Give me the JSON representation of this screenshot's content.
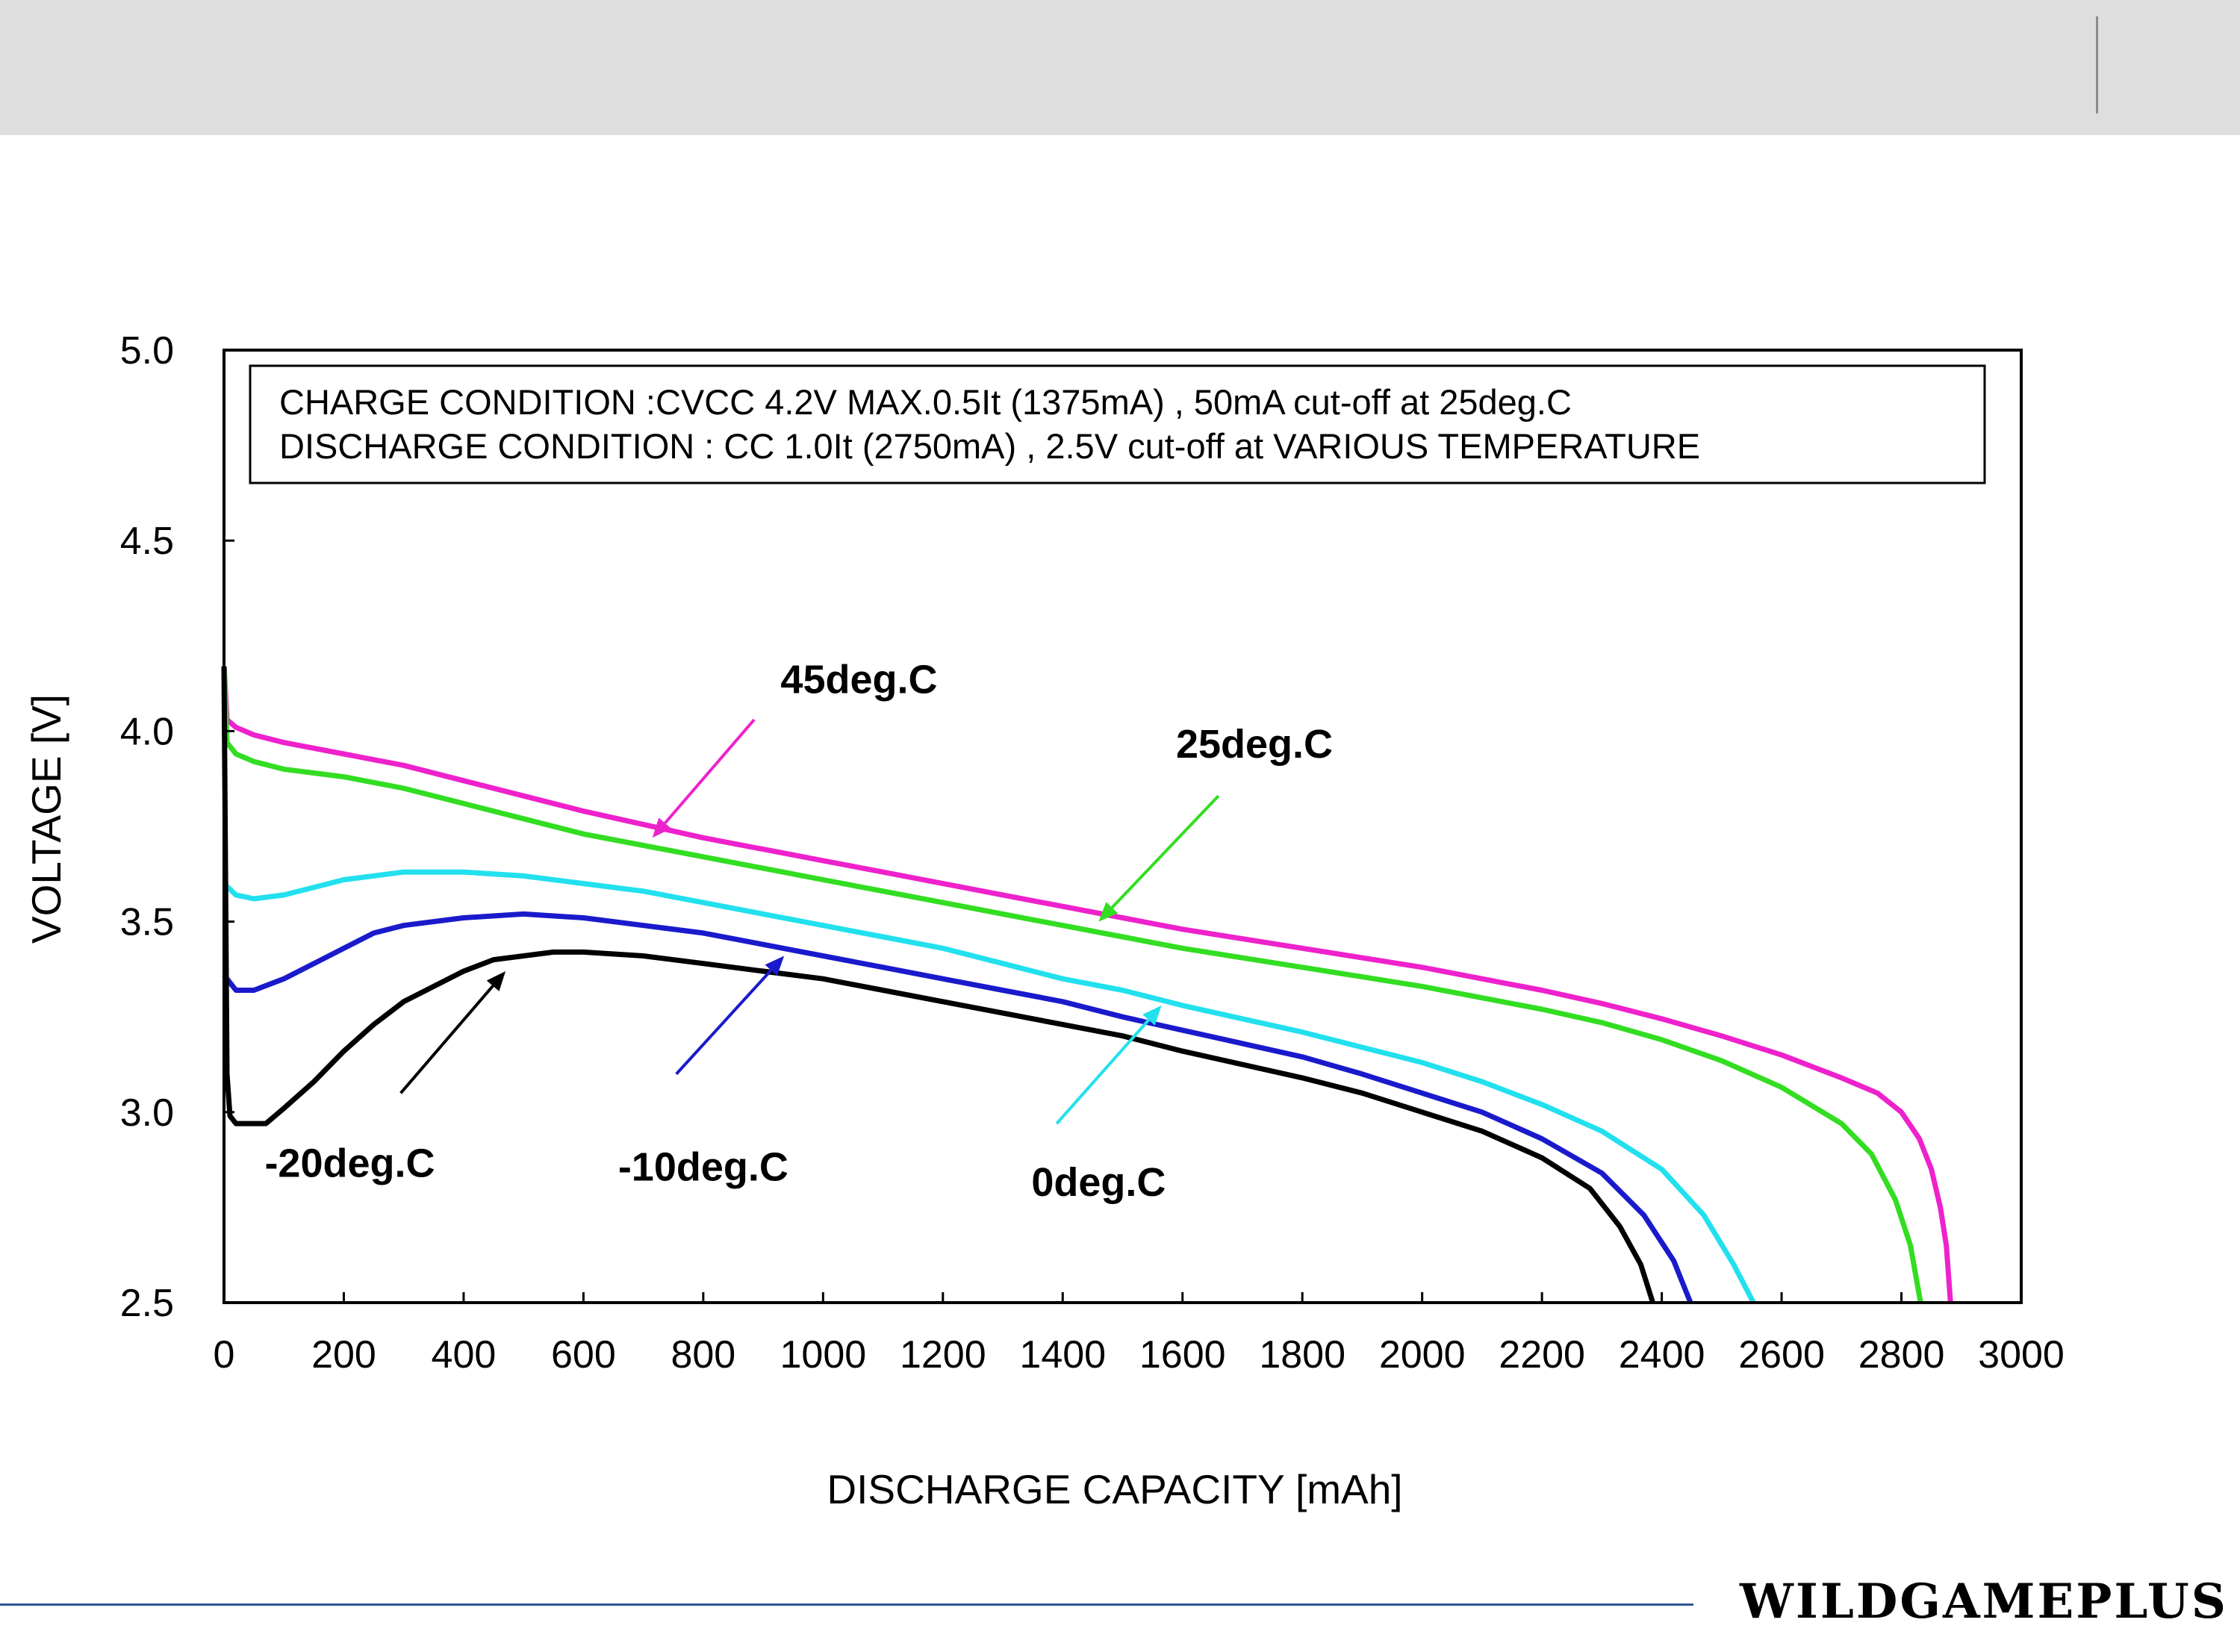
{
  "brand": "WILDGAMEPLUS",
  "chart_data": {
    "type": "line",
    "title": "",
    "xlabel": "DISCHARGE CAPACITY  [mAh]",
    "ylabel": "VOLTAGE  [V]",
    "xlim": [
      0,
      3000
    ],
    "ylim": [
      2.5,
      5.0
    ],
    "x_ticks": [
      0,
      200,
      400,
      600,
      800,
      1000,
      1200,
      1400,
      1600,
      1800,
      2000,
      2200,
      2400,
      2600,
      2800,
      3000
    ],
    "y_ticks": [
      "2.5",
      "3.0",
      "3.5",
      "4.0",
      "4.5",
      "5.0"
    ],
    "grid": false,
    "legend": "none",
    "annotation_box": [
      "CHARGE CONDITION :CVCC 4.2V MAX.0.5It (1375mA) , 50mA cut-off at  25deg.C",
      "DISCHARGE CONDITION : CC 1.0It (2750mA) , 2.5V cut-off at  VARIOUS TEMPERATURE"
    ],
    "series": [
      {
        "name": "45deg.C",
        "color": "#ee22cc",
        "points": [
          [
            0,
            4.17
          ],
          [
            5,
            4.03
          ],
          [
            20,
            4.01
          ],
          [
            50,
            3.99
          ],
          [
            100,
            3.97
          ],
          [
            200,
            3.94
          ],
          [
            300,
            3.91
          ],
          [
            400,
            3.87
          ],
          [
            500,
            3.83
          ],
          [
            600,
            3.79
          ],
          [
            700,
            3.755
          ],
          [
            800,
            3.72
          ],
          [
            900,
            3.69
          ],
          [
            1000,
            3.66
          ],
          [
            1100,
            3.63
          ],
          [
            1200,
            3.6
          ],
          [
            1300,
            3.57
          ],
          [
            1400,
            3.54
          ],
          [
            1500,
            3.51
          ],
          [
            1600,
            3.48
          ],
          [
            1700,
            3.455
          ],
          [
            1800,
            3.43
          ],
          [
            1900,
            3.405
          ],
          [
            2000,
            3.38
          ],
          [
            2100,
            3.35
          ],
          [
            2200,
            3.32
          ],
          [
            2300,
            3.285
          ],
          [
            2400,
            3.245
          ],
          [
            2500,
            3.2
          ],
          [
            2600,
            3.15
          ],
          [
            2700,
            3.09
          ],
          [
            2760,
            3.05
          ],
          [
            2800,
            3.0
          ],
          [
            2830,
            2.93
          ],
          [
            2850,
            2.85
          ],
          [
            2865,
            2.75
          ],
          [
            2875,
            2.65
          ],
          [
            2882,
            2.5
          ]
        ]
      },
      {
        "name": "25deg.C",
        "color": "#33dd22",
        "points": [
          [
            0,
            4.17
          ],
          [
            5,
            3.97
          ],
          [
            20,
            3.94
          ],
          [
            50,
            3.92
          ],
          [
            100,
            3.9
          ],
          [
            200,
            3.88
          ],
          [
            300,
            3.85
          ],
          [
            400,
            3.81
          ],
          [
            500,
            3.77
          ],
          [
            600,
            3.73
          ],
          [
            700,
            3.7
          ],
          [
            800,
            3.67
          ],
          [
            900,
            3.64
          ],
          [
            1000,
            3.61
          ],
          [
            1100,
            3.58
          ],
          [
            1200,
            3.55
          ],
          [
            1300,
            3.52
          ],
          [
            1400,
            3.49
          ],
          [
            1500,
            3.46
          ],
          [
            1600,
            3.43
          ],
          [
            1700,
            3.405
          ],
          [
            1800,
            3.38
          ],
          [
            1900,
            3.355
          ],
          [
            2000,
            3.33
          ],
          [
            2100,
            3.3
          ],
          [
            2200,
            3.27
          ],
          [
            2300,
            3.235
          ],
          [
            2400,
            3.19
          ],
          [
            2500,
            3.135
          ],
          [
            2600,
            3.065
          ],
          [
            2700,
            2.97
          ],
          [
            2750,
            2.89
          ],
          [
            2790,
            2.77
          ],
          [
            2815,
            2.65
          ],
          [
            2832,
            2.5
          ]
        ]
      },
      {
        "name": "0deg.C",
        "color": "#22e0ee",
        "points": [
          [
            0,
            3.6
          ],
          [
            20,
            3.57
          ],
          [
            50,
            3.56
          ],
          [
            100,
            3.57
          ],
          [
            200,
            3.61
          ],
          [
            300,
            3.63
          ],
          [
            400,
            3.63
          ],
          [
            500,
            3.62
          ],
          [
            600,
            3.6
          ],
          [
            700,
            3.58
          ],
          [
            800,
            3.55
          ],
          [
            900,
            3.52
          ],
          [
            1000,
            3.49
          ],
          [
            1100,
            3.46
          ],
          [
            1200,
            3.43
          ],
          [
            1300,
            3.39
          ],
          [
            1400,
            3.35
          ],
          [
            1500,
            3.32
          ],
          [
            1600,
            3.28
          ],
          [
            1700,
            3.245
          ],
          [
            1800,
            3.21
          ],
          [
            1900,
            3.17
          ],
          [
            2000,
            3.13
          ],
          [
            2100,
            3.08
          ],
          [
            2200,
            3.02
          ],
          [
            2300,
            2.95
          ],
          [
            2400,
            2.85
          ],
          [
            2470,
            2.73
          ],
          [
            2520,
            2.6
          ],
          [
            2553,
            2.5
          ]
        ]
      },
      {
        "name": "-10deg.C",
        "color": "#1a1acc",
        "points": [
          [
            0,
            3.36
          ],
          [
            20,
            3.32
          ],
          [
            50,
            3.32
          ],
          [
            100,
            3.35
          ],
          [
            150,
            3.39
          ],
          [
            200,
            3.43
          ],
          [
            250,
            3.47
          ],
          [
            300,
            3.49
          ],
          [
            400,
            3.51
          ],
          [
            500,
            3.52
          ],
          [
            600,
            3.51
          ],
          [
            700,
            3.49
          ],
          [
            800,
            3.47
          ],
          [
            900,
            3.44
          ],
          [
            1000,
            3.41
          ],
          [
            1100,
            3.38
          ],
          [
            1200,
            3.35
          ],
          [
            1300,
            3.32
          ],
          [
            1400,
            3.29
          ],
          [
            1500,
            3.25
          ],
          [
            1600,
            3.215
          ],
          [
            1700,
            3.18
          ],
          [
            1800,
            3.145
          ],
          [
            1900,
            3.1
          ],
          [
            2000,
            3.05
          ],
          [
            2100,
            3.0
          ],
          [
            2200,
            2.93
          ],
          [
            2300,
            2.84
          ],
          [
            2370,
            2.73
          ],
          [
            2420,
            2.61
          ],
          [
            2448,
            2.5
          ]
        ]
      },
      {
        "name": "-20deg.C",
        "color": "#000000",
        "points": [
          [
            0,
            4.17
          ],
          [
            5,
            3.1
          ],
          [
            10,
            2.99
          ],
          [
            20,
            2.97
          ],
          [
            50,
            2.97
          ],
          [
            70,
            2.97
          ],
          [
            100,
            3.01
          ],
          [
            150,
            3.08
          ],
          [
            200,
            3.16
          ],
          [
            250,
            3.23
          ],
          [
            300,
            3.29
          ],
          [
            350,
            3.33
          ],
          [
            400,
            3.37
          ],
          [
            450,
            3.4
          ],
          [
            500,
            3.41
          ],
          [
            550,
            3.42
          ],
          [
            600,
            3.42
          ],
          [
            700,
            3.41
          ],
          [
            800,
            3.39
          ],
          [
            900,
            3.37
          ],
          [
            1000,
            3.35
          ],
          [
            1100,
            3.32
          ],
          [
            1200,
            3.29
          ],
          [
            1300,
            3.26
          ],
          [
            1400,
            3.23
          ],
          [
            1500,
            3.2
          ],
          [
            1600,
            3.16
          ],
          [
            1700,
            3.125
          ],
          [
            1800,
            3.09
          ],
          [
            1900,
            3.05
          ],
          [
            2000,
            3.0
          ],
          [
            2100,
            2.95
          ],
          [
            2200,
            2.88
          ],
          [
            2280,
            2.8
          ],
          [
            2330,
            2.7
          ],
          [
            2365,
            2.6
          ],
          [
            2385,
            2.5
          ]
        ]
      }
    ],
    "labels": [
      {
        "text": "45deg.C",
        "x": 1060,
        "y": 4.1,
        "color": "#000000"
      },
      {
        "text": "25deg.C",
        "x": 1720,
        "y": 3.93,
        "color": "#000000"
      },
      {
        "text": "0deg.C",
        "x": 1460,
        "y": 2.78,
        "color": "#000000"
      },
      {
        "text": "-10deg.C",
        "x": 800,
        "y": 2.82,
        "color": "#000000"
      },
      {
        "text": "-20deg.C",
        "x": 210,
        "y": 2.83,
        "color": "#000000"
      }
    ],
    "arrows": [
      {
        "series": "45deg.C",
        "from": [
          885,
          4.03
        ],
        "to": [
          715,
          3.72
        ]
      },
      {
        "series": "25deg.C",
        "from": [
          1660,
          3.83
        ],
        "to": [
          1460,
          3.5
        ]
      },
      {
        "series": "0deg.C",
        "from": [
          1390,
          2.97
        ],
        "to": [
          1565,
          3.28
        ]
      },
      {
        "series": "-10deg.C",
        "from": [
          755,
          3.1
        ],
        "to": [
          935,
          3.41
        ]
      },
      {
        "series": "-20deg.C",
        "from": [
          295,
          3.05
        ],
        "to": [
          470,
          3.37
        ]
      }
    ]
  }
}
